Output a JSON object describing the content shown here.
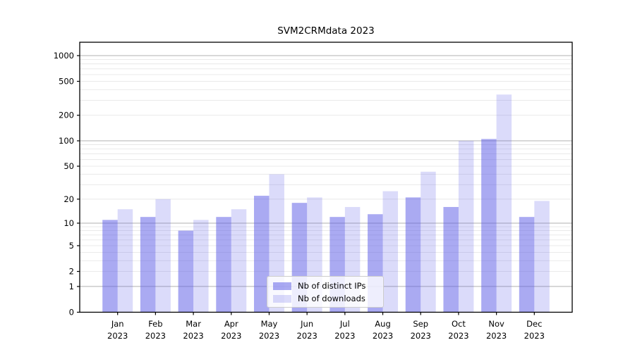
{
  "chart_data": {
    "type": "bar",
    "title": "SVM2CRMdata 2023",
    "scale": "log1p",
    "grid": true,
    "legend_position": "lower center (inside plot, over bars)",
    "categories": [
      "Jan 2023",
      "Feb 2023",
      "Mar 2023",
      "Apr 2023",
      "May 2023",
      "Jun 2023",
      "Jul 2023",
      "Aug 2023",
      "Sep 2023",
      "Oct 2023",
      "Nov 2023",
      "Dec 2023"
    ],
    "x_tick_labels": [
      {
        "line1": "Jan",
        "line2": "2023"
      },
      {
        "line1": "Feb",
        "line2": "2023"
      },
      {
        "line1": "Mar",
        "line2": "2023"
      },
      {
        "line1": "Apr",
        "line2": "2023"
      },
      {
        "line1": "May",
        "line2": "2023"
      },
      {
        "line1": "Jun",
        "line2": "2023"
      },
      {
        "line1": "Jul",
        "line2": "2023"
      },
      {
        "line1": "Aug",
        "line2": "2023"
      },
      {
        "line1": "Sep",
        "line2": "2023"
      },
      {
        "line1": "Oct",
        "line2": "2023"
      },
      {
        "line1": "Nov",
        "line2": "2023"
      },
      {
        "line1": "Dec",
        "line2": "2023"
      }
    ],
    "y_ticks": [
      0,
      1,
      2,
      5,
      10,
      20,
      50,
      100,
      200,
      500,
      1000
    ],
    "ylim": [
      0,
      1400
    ],
    "series": [
      {
        "name": "Nb of distinct IPs",
        "color": "rgba(85,85,230,0.50)",
        "values": [
          11,
          12,
          8,
          12,
          22,
          18,
          12,
          13,
          21,
          16,
          105,
          12
        ]
      },
      {
        "name": "Nb of downloads",
        "color": "rgba(85,85,230,0.21)",
        "values": [
          15,
          20,
          11,
          15,
          40,
          21,
          16,
          25,
          43,
          100,
          350,
          19
        ]
      }
    ],
    "colors": {
      "major_grid": "#b0b0b0",
      "minor_grid": "#e7e7e7",
      "axis": "#000000",
      "text": "#000000",
      "background": "#ffffff"
    }
  }
}
